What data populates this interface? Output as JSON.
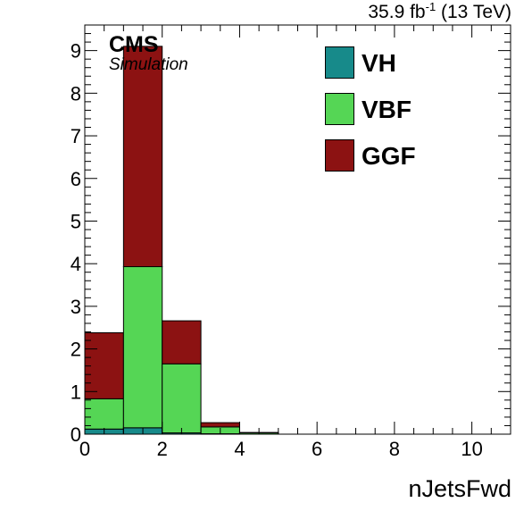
{
  "header": {
    "lumi_value": "35.9 fb",
    "lumi_exp": "-1",
    "lumi_energy": " (13 TeV)",
    "experiment": "CMS",
    "subtitle": "Simulation"
  },
  "legend": [
    {
      "label": "VH",
      "color": "#178a8a"
    },
    {
      "label": "VBF",
      "color": "#55d655"
    },
    {
      "label": "GGF",
      "color": "#8c1212"
    }
  ],
  "chart_data": {
    "type": "bar",
    "stacked": true,
    "histogram": true,
    "xlabel": "nJetsFwd",
    "ylabel": "",
    "xlim": [
      0,
      11
    ],
    "ylim": [
      0,
      9.6
    ],
    "bin_edges": [
      0,
      1,
      2,
      3,
      4,
      5,
      6,
      7,
      8,
      9,
      10,
      11
    ],
    "x_ticks": [
      0,
      2,
      4,
      6,
      8,
      10
    ],
    "y_ticks": [
      0,
      1,
      2,
      3,
      4,
      5,
      6,
      7,
      8,
      9
    ],
    "series": [
      {
        "name": "VH",
        "color": "#178a8a",
        "values": [
          0.12,
          0.15,
          0.03,
          0.01,
          0,
          0,
          0,
          0,
          0,
          0,
          0
        ]
      },
      {
        "name": "VBF",
        "color": "#55d655",
        "values": [
          0.71,
          3.78,
          1.62,
          0.16,
          0.03,
          0,
          0,
          0,
          0,
          0,
          0
        ]
      },
      {
        "name": "GGF",
        "color": "#8c1212",
        "values": [
          1.55,
          5.17,
          1.01,
          0.1,
          0.01,
          0,
          0,
          0,
          0,
          0,
          0
        ]
      }
    ],
    "grid": false
  }
}
